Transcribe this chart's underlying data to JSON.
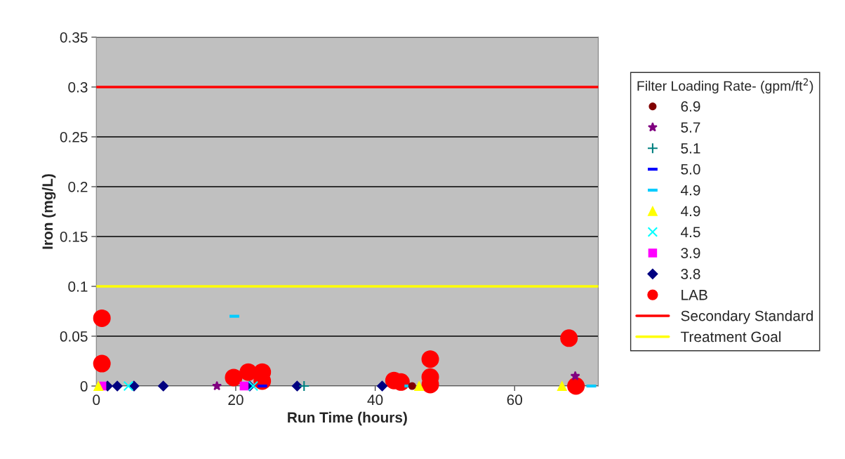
{
  "chart_data": {
    "type": "scatter",
    "xlabel": "Run Time (hours)",
    "ylabel": "Iron (mg/L)",
    "legend_title": "Filter Loading Rate- (gpm/ft$^{2}$)",
    "xlim": [
      0,
      72
    ],
    "xticks": [
      0,
      20,
      40,
      60
    ],
    "ylim": [
      0,
      0.35
    ],
    "yticks": [
      0,
      0.05,
      0.1,
      0.15,
      0.2,
      0.25,
      0.3,
      0.35
    ],
    "grid": "y",
    "legend": "right",
    "series": [
      {
        "name": "6.9",
        "color": "#800000",
        "marker": "point",
        "x": [
          45.3
        ],
        "values": [
          0
        ]
      },
      {
        "name": "5.7",
        "color": "#800080",
        "marker": "star",
        "x": [
          17.3,
          68.7
        ],
        "values": [
          0,
          0.01
        ]
      },
      {
        "name": "5.1",
        "color": "#008080",
        "marker": "plus",
        "x": [
          29.8
        ],
        "values": [
          0
        ]
      },
      {
        "name": "5.0",
        "color": "#0000ff",
        "x": [
          23.8
        ],
        "values": [
          0
        ]
      },
      {
        "name": "4.9",
        "color": "#00ccff",
        "x": [
          19.8,
          44.9,
          71.0
        ],
        "values": [
          0.07,
          0,
          0
        ]
      },
      {
        "name": "4.9",
        "color": "#ffff00",
        "marker": "triangle",
        "x": [
          0.3,
          46.3,
          66.8
        ],
        "values": [
          0,
          0,
          0
        ]
      },
      {
        "name": "4.5",
        "color": "#00ffff",
        "marker": "cross",
        "x": [
          4.6,
          22.5
        ],
        "values": [
          0,
          0
        ]
      },
      {
        "name": "3.9",
        "color": "#ff00ff",
        "marker": "square",
        "x": [
          0.8,
          21.2
        ],
        "values": [
          0,
          0
        ]
      },
      {
        "name": "3.8",
        "color": "#000080",
        "marker": "diamond",
        "x": [
          1.6,
          3.0,
          5.4,
          9.6,
          22.0,
          28.8,
          41.0
        ],
        "values": [
          0,
          0,
          0,
          0,
          0,
          0,
          0
        ]
      },
      {
        "name": "LAB",
        "color": "#ff0000",
        "marker": "circle",
        "x": [
          0.8,
          0.8,
          19.7,
          21.8,
          23.8,
          23.8,
          42.7,
          43.7,
          47.9,
          47.9,
          47.9,
          67.8,
          68.8
        ],
        "values": [
          0.068,
          0.0225,
          0.0085,
          0.014,
          0.014,
          0.005,
          0.0055,
          0.004,
          0.027,
          0.009,
          0.0015,
          0.048,
          0
        ]
      }
    ],
    "ref_lines": [
      {
        "axis": "y",
        "value": 0.3,
        "label": "Secondary Standard",
        "color": "#ff0000"
      },
      {
        "axis": "y",
        "value": 0.1,
        "label": "Treatment Goal",
        "color": "#ffff00"
      }
    ]
  }
}
